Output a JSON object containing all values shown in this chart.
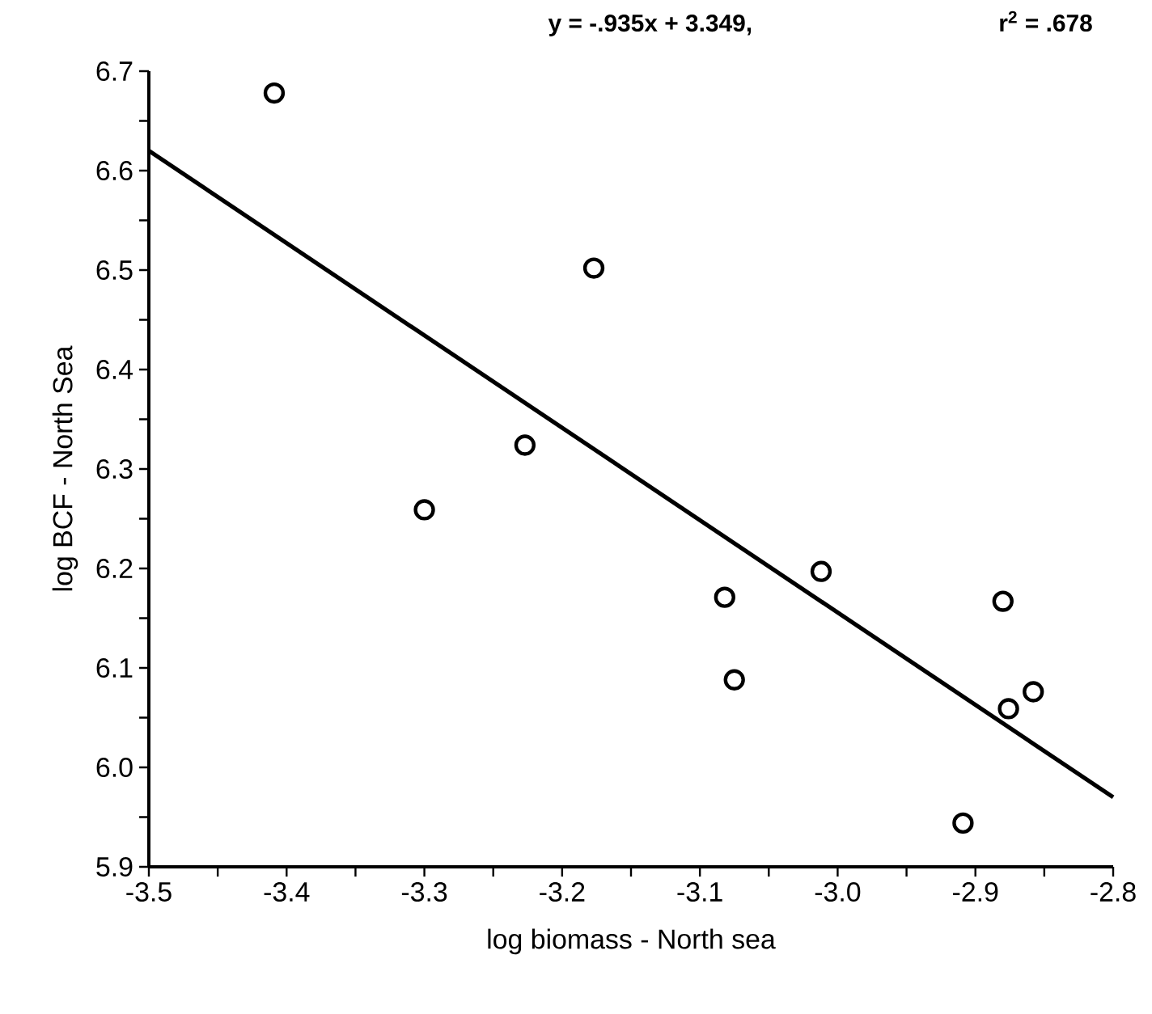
{
  "chart_data": {
    "type": "scatter",
    "xlabel": "log biomass - North sea",
    "ylabel": "log BCF - North Sea",
    "annotations": [
      "y = -.935x + 3.349,",
      "r$^{2}$ = .678"
    ],
    "series": [
      {
        "marker": "circle",
        "color": "#000000",
        "x": [
          -3.409,
          -3.3,
          -3.227,
          -3.177,
          -3.082,
          -3.075,
          -3.012,
          -2.909,
          -2.88,
          -2.876,
          -2.858
        ],
        "values": [
          6.678,
          6.259,
          6.324,
          6.502,
          6.171,
          6.088,
          6.197,
          5.944,
          6.167,
          6.059,
          6.076
        ]
      },
      {
        "type": "line",
        "marker": "none",
        "color": "#000000",
        "x": [
          -3.5,
          -2.8
        ],
        "values": [
          6.62,
          5.97
        ]
      }
    ],
    "xlim": [
      -3.5,
      -2.8
    ],
    "ylim": [
      5.9,
      6.7
    ],
    "xticks": [
      -3.5,
      {
        "value": -3.45,
        "label": null
      },
      -3.4,
      {
        "value": -3.35,
        "label": null
      },
      -3.3,
      {
        "value": -3.25,
        "label": null
      },
      -3.2,
      {
        "value": -3.15,
        "label": null
      },
      -3.1,
      {
        "value": -3.05,
        "label": null
      },
      {
        "value": -3.0,
        "label": "-3.0"
      },
      {
        "value": -2.95,
        "label": null
      },
      -2.9,
      {
        "value": -2.85,
        "label": null
      },
      -2.8
    ],
    "yticks": [
      5.9,
      {
        "value": 5.95,
        "label": null
      },
      {
        "value": 6.0,
        "label": "6.0"
      },
      {
        "value": 6.05,
        "label": null
      },
      6.1,
      {
        "value": 6.15,
        "label": null
      },
      6.2,
      {
        "value": 6.25,
        "label": null
      },
      6.3,
      {
        "value": 6.35,
        "label": null
      },
      6.4,
      {
        "value": 6.45,
        "label": null
      },
      6.5,
      {
        "value": 6.55,
        "label": null
      },
      6.6,
      {
        "value": 6.65,
        "label": null
      },
      6.7
    ]
  }
}
